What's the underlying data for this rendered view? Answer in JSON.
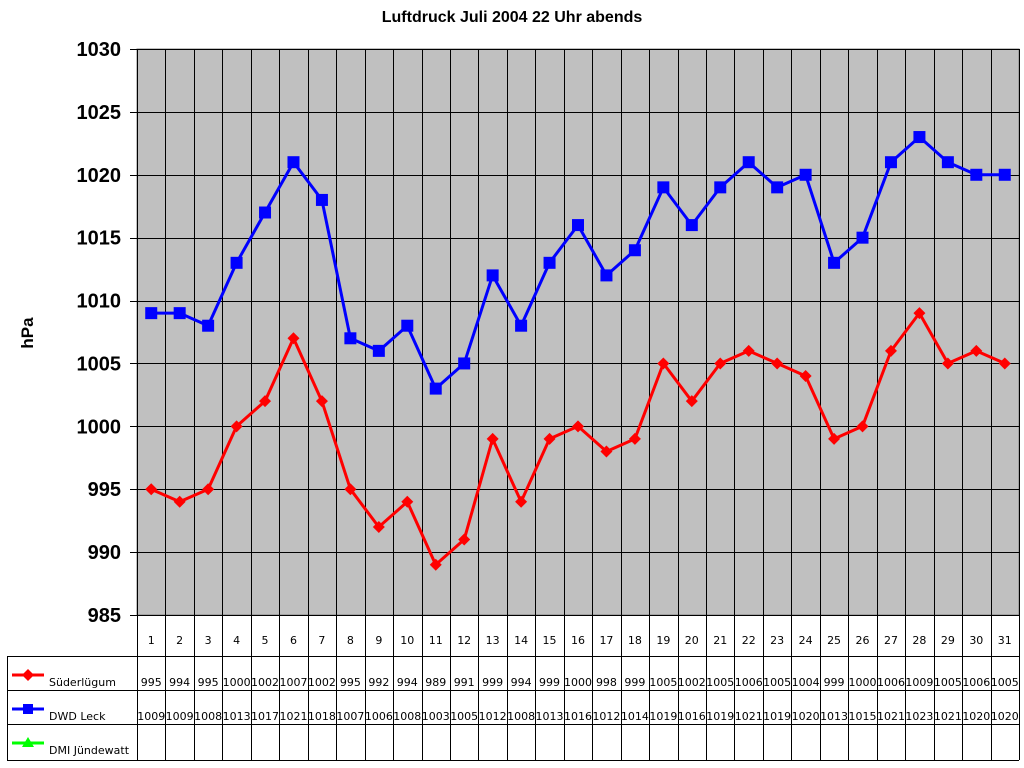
{
  "chart_data": {
    "type": "line",
    "title": "Luftdruck Juli 2004 22 Uhr abends",
    "xlabel": "",
    "ylabel": "hPa",
    "ylim": [
      985,
      1030
    ],
    "yticks": [
      985,
      990,
      995,
      1000,
      1005,
      1010,
      1015,
      1020,
      1025,
      1030
    ],
    "grid": true,
    "legend_position": "data-table-left",
    "categories": [
      "1",
      "2",
      "3",
      "4",
      "5",
      "6",
      "7",
      "8",
      "9",
      "10",
      "11",
      "12",
      "13",
      "14",
      "15",
      "16",
      "17",
      "18",
      "19",
      "20",
      "21",
      "22",
      "23",
      "24",
      "25",
      "26",
      "27",
      "28",
      "29",
      "30",
      "31"
    ],
    "series": [
      {
        "name": "Süderlügum",
        "color": "#ff0000",
        "marker": "diamond",
        "values": [
          995,
          994,
          995,
          1000,
          1002,
          1007,
          1002,
          995,
          992,
          994,
          989,
          991,
          999,
          994,
          999,
          1000,
          998,
          999,
          1005,
          1002,
          1005,
          1006,
          1005,
          1004,
          999,
          1000,
          1006,
          1009,
          1005,
          1006,
          1005
        ]
      },
      {
        "name": "DWD Leck",
        "color": "#0000ff",
        "marker": "square",
        "values": [
          1009,
          1009,
          1008,
          1013,
          1017,
          1021,
          1018,
          1007,
          1006,
          1008,
          1003,
          1005,
          1012,
          1008,
          1013,
          1016,
          1012,
          1014,
          1019,
          1016,
          1019,
          1021,
          1019,
          1020,
          1013,
          1015,
          1021,
          1023,
          1021,
          1020,
          1020
        ]
      },
      {
        "name": "DMI Jündewatt",
        "color": "#00ff00",
        "marker": "triangle",
        "values": []
      }
    ]
  },
  "colors": {
    "plot_background": "#c0c0c0",
    "grid": "#000000"
  }
}
